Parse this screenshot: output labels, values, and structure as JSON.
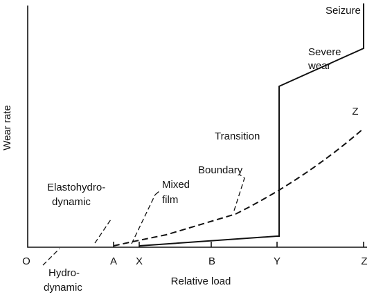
{
  "axes": {
    "x_label": "Relative load",
    "y_label": "Wear rate"
  },
  "ticks": [
    "O",
    "A",
    "X",
    "B",
    "Y",
    "Z"
  ],
  "curve_label": "Z",
  "regions": [
    {
      "lines": [
        "Hydro-",
        "dynamic"
      ]
    },
    {
      "lines": [
        "Elastohydro-",
        "dynamic"
      ]
    },
    {
      "lines": [
        "Mixed",
        "film"
      ]
    },
    {
      "lines": [
        "Boundary"
      ]
    },
    {
      "lines": [
        "Transition"
      ]
    },
    {
      "lines": [
        "Severe",
        "wear"
      ]
    },
    {
      "lines": [
        "Seizure"
      ]
    }
  ]
}
